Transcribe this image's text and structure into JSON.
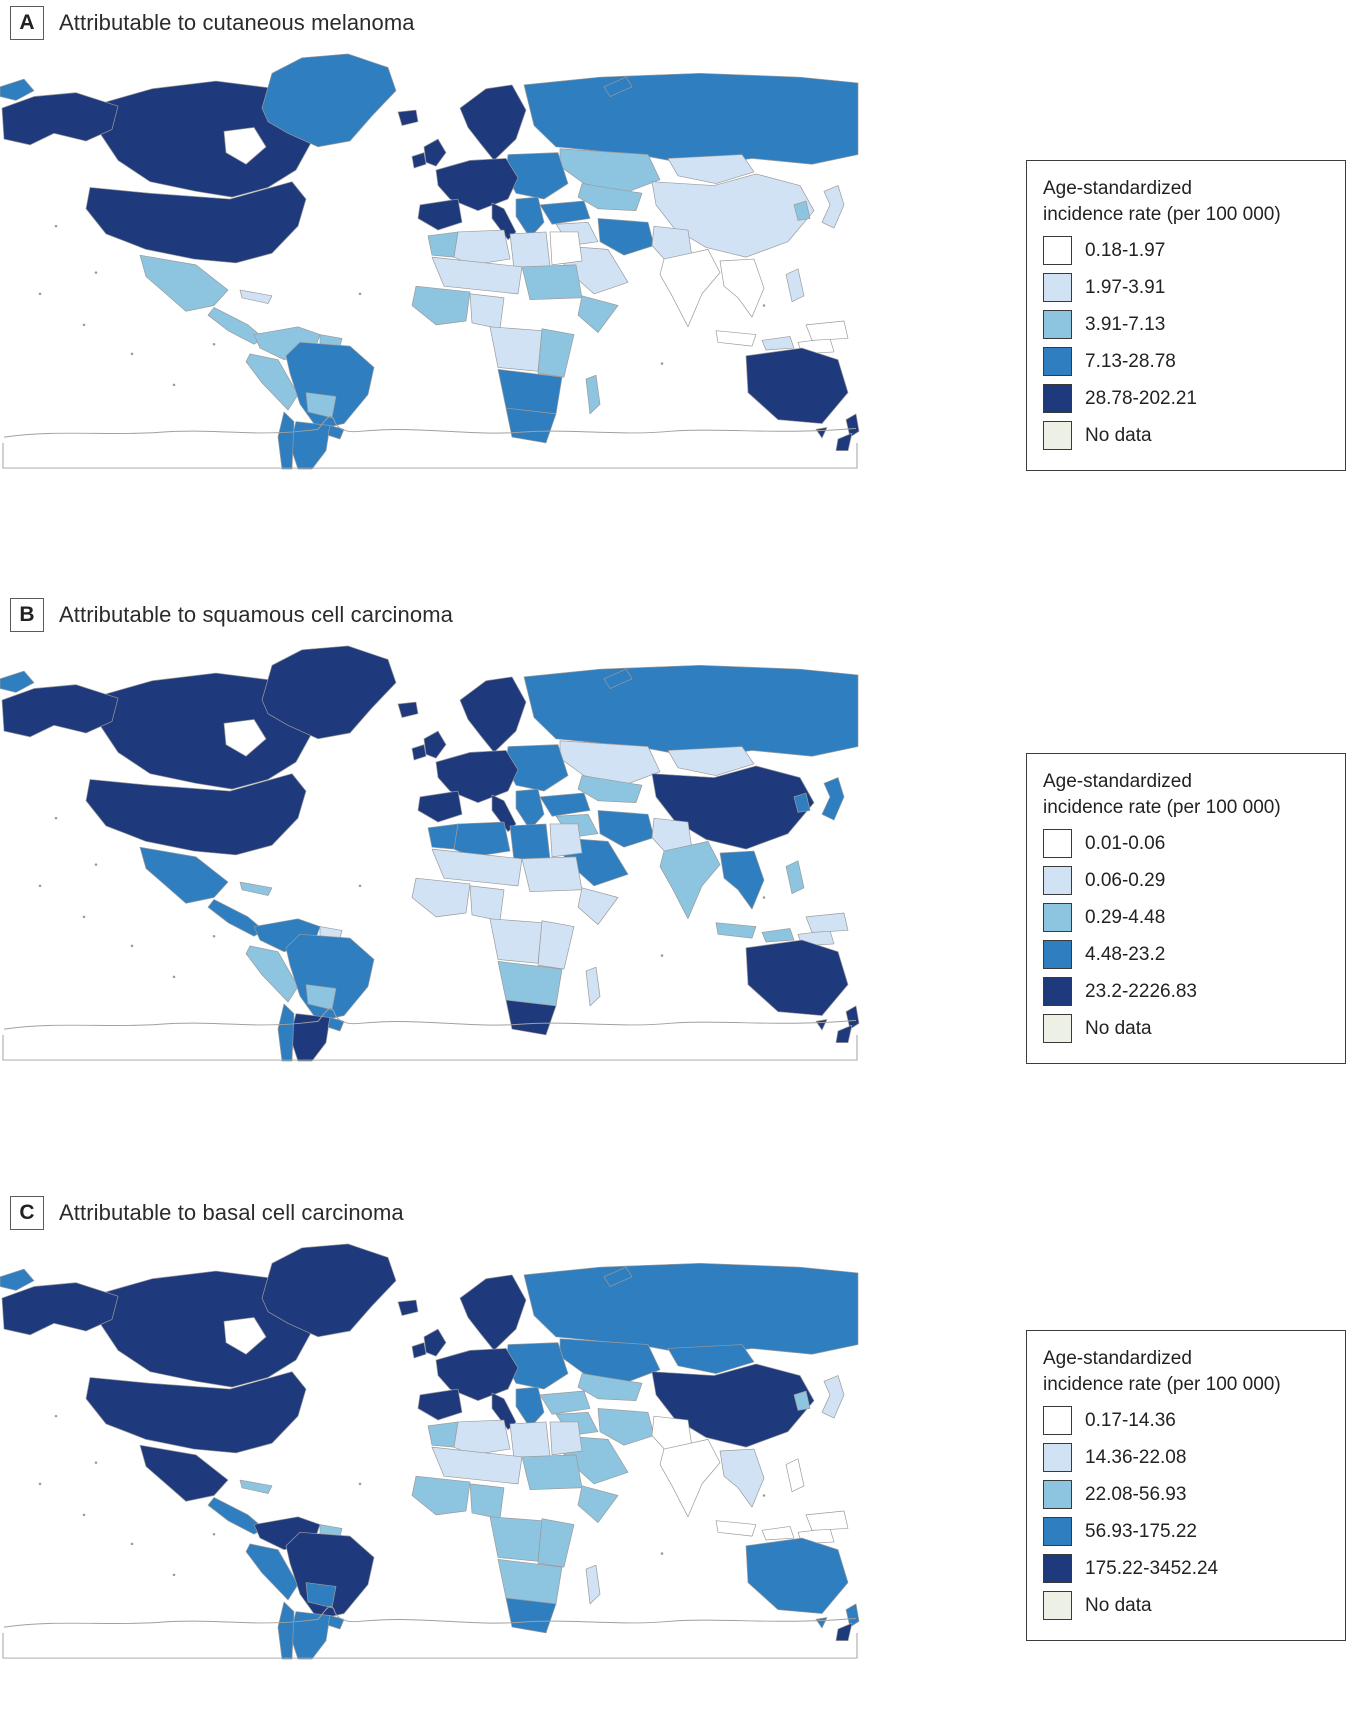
{
  "figure": {
    "map_colors": {
      "ocean": "#ffffff",
      "border": "#9b9b9b",
      "outline": "#a0a0a0"
    },
    "panels": [
      {
        "label": "A",
        "title": "Attributable to cutaneous melanoma",
        "legend": {
          "title_line1": "Age-standardized",
          "title_line2": "incidence rate (per 100 000)",
          "bins": [
            {
              "label": "0.18-1.97",
              "color": "#ffffff"
            },
            {
              "label": "1.97-3.91",
              "color": "#d0e2f4"
            },
            {
              "label": "3.91-7.13",
              "color": "#8dc4df"
            },
            {
              "label": "7.13-28.78",
              "color": "#2e7ec0"
            },
            {
              "label": "28.78-202.21",
              "color": "#1f3a7c"
            },
            {
              "label": "No data",
              "color": "#edf1e5"
            }
          ]
        },
        "regions": {
          "russia": 4,
          "arctic-islands": 4,
          "chukotka": 4,
          "kazakhstan": 3,
          "central-asia": 3,
          "mongolia": 2,
          "china": 2,
          "korea": 3,
          "japan": 2,
          "canada": 5,
          "alaska": 5,
          "greenland": 4,
          "iceland": 5,
          "usa": 5,
          "mexico": 3,
          "central-america": 3,
          "caribbean": 2,
          "colombia-venezuela": 3,
          "guyanas": 3,
          "peru": 3,
          "brazil": 4,
          "bolivia": 3,
          "argentina": 4,
          "chile": 4,
          "uruguay": 4,
          "scandinavia": 5,
          "uk": 5,
          "ireland": 5,
          "eastern-europe": 4,
          "western-europe": 5,
          "iberia": 5,
          "italy": 5,
          "balkans": 4,
          "turkey": 4,
          "iraq-syria": 2,
          "iran": 4,
          "saudi": 2,
          "afghan-pak": 2,
          "india": 1,
          "southeast-asia": 1,
          "philippines": 2,
          "indonesia-sumatra": 1,
          "indonesia-java": 2,
          "borneo": 1,
          "new-guinea": 1,
          "morocco": 3,
          "algeria": 2,
          "libya": 2,
          "egypt": 1,
          "sahel": 2,
          "sudan": 3,
          "west-africa": 3,
          "nigeria": 2,
          "horn": 3,
          "central-africa": 2,
          "east-africa": 3,
          "southern-africa": 4,
          "south-africa": 4,
          "madagascar": 3,
          "australia": 5,
          "tasmania": 5,
          "new-zealand-north": 5,
          "new-zealand-south": 5
        }
      },
      {
        "label": "B",
        "title": "Attributable to squamous cell carcinoma",
        "legend": {
          "title_line1": "Age-standardized",
          "title_line2": "incidence rate (per 100 000)",
          "bins": [
            {
              "label": "0.01-0.06",
              "color": "#ffffff"
            },
            {
              "label": "0.06-0.29",
              "color": "#d0e2f4"
            },
            {
              "label": "0.29-4.48",
              "color": "#8dc4df"
            },
            {
              "label": "4.48-23.2",
              "color": "#2e7ec0"
            },
            {
              "label": "23.2-2226.83",
              "color": "#1f3a7c"
            },
            {
              "label": "No data",
              "color": "#edf1e5"
            }
          ]
        },
        "regions": {
          "russia": 4,
          "arctic-islands": 4,
          "chukotka": 4,
          "kazakhstan": 2,
          "central-asia": 3,
          "mongolia": 2,
          "china": 5,
          "korea": 4,
          "japan": 4,
          "canada": 5,
          "alaska": 5,
          "greenland": 5,
          "iceland": 5,
          "usa": 5,
          "mexico": 4,
          "central-america": 4,
          "caribbean": 3,
          "colombia-venezuela": 4,
          "guyanas": 2,
          "peru": 3,
          "brazil": 4,
          "bolivia": 3,
          "argentina": 5,
          "chile": 4,
          "uruguay": 4,
          "scandinavia": 5,
          "uk": 5,
          "ireland": 5,
          "eastern-europe": 4,
          "western-europe": 5,
          "iberia": 5,
          "italy": 5,
          "balkans": 4,
          "turkey": 4,
          "iraq-syria": 3,
          "iran": 4,
          "saudi": 4,
          "afghan-pak": 2,
          "india": 3,
          "southeast-asia": 4,
          "philippines": 3,
          "indonesia-sumatra": 3,
          "indonesia-java": 3,
          "borneo": 2,
          "new-guinea": 2,
          "morocco": 4,
          "algeria": 4,
          "libya": 4,
          "egypt": 2,
          "sahel": 2,
          "sudan": 2,
          "west-africa": 2,
          "nigeria": 2,
          "horn": 2,
          "central-africa": 2,
          "east-africa": 2,
          "southern-africa": 3,
          "south-africa": 5,
          "madagascar": 2,
          "australia": 5,
          "tasmania": 5,
          "new-zealand-north": 5,
          "new-zealand-south": 5
        }
      },
      {
        "label": "C",
        "title": "Attributable to basal cell carcinoma",
        "legend": {
          "title_line1": "Age-standardized",
          "title_line2": "incidence rate (per 100 000)",
          "bins": [
            {
              "label": "0.17-14.36",
              "color": "#ffffff"
            },
            {
              "label": "14.36-22.08",
              "color": "#d0e2f4"
            },
            {
              "label": "22.08-56.93",
              "color": "#8dc4df"
            },
            {
              "label": "56.93-175.22",
              "color": "#2e7ec0"
            },
            {
              "label": "175.22-3452.24",
              "color": "#1f3a7c"
            },
            {
              "label": "No data",
              "color": "#edf1e5"
            }
          ]
        },
        "regions": {
          "russia": 4,
          "arctic-islands": 4,
          "chukotka": 4,
          "kazakhstan": 4,
          "central-asia": 3,
          "mongolia": 4,
          "china": 5,
          "korea": 3,
          "japan": 2,
          "canada": 5,
          "alaska": 5,
          "greenland": 5,
          "iceland": 5,
          "usa": 5,
          "mexico": 5,
          "central-america": 4,
          "caribbean": 3,
          "colombia-venezuela": 5,
          "guyanas": 3,
          "peru": 4,
          "brazil": 5,
          "bolivia": 4,
          "argentina": 4,
          "chile": 4,
          "uruguay": 4,
          "scandinavia": 5,
          "uk": 5,
          "ireland": 5,
          "eastern-europe": 4,
          "western-europe": 5,
          "iberia": 5,
          "italy": 5,
          "balkans": 4,
          "turkey": 3,
          "iraq-syria": 3,
          "iran": 3,
          "saudi": 3,
          "afghan-pak": 1,
          "india": 1,
          "southeast-asia": 2,
          "philippines": 1,
          "indonesia-sumatra": 1,
          "indonesia-java": 1,
          "borneo": 1,
          "new-guinea": 1,
          "morocco": 3,
          "algeria": 2,
          "libya": 2,
          "egypt": 2,
          "sahel": 2,
          "sudan": 3,
          "west-africa": 3,
          "nigeria": 3,
          "horn": 3,
          "central-africa": 3,
          "east-africa": 3,
          "southern-africa": 3,
          "south-africa": 4,
          "madagascar": 2,
          "australia": 4,
          "tasmania": 4,
          "new-zealand-north": 4,
          "new-zealand-south": 5
        }
      }
    ]
  }
}
